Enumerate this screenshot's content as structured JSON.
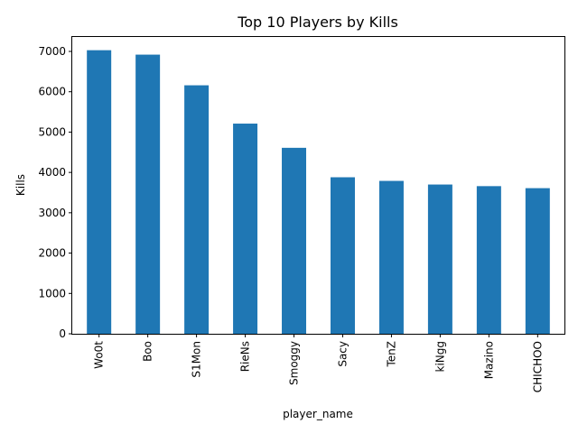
{
  "chart_data": {
    "type": "bar",
    "title": "Top 10 Players by Kills",
    "xlabel": "player_name",
    "ylabel": "Kills",
    "categories": [
      "Wo0t",
      "Boo",
      "S1Mon",
      "RieNs",
      "Smoggy",
      "Sacy",
      "TenZ",
      "kiNgg",
      "Mazino",
      "CHICHOO"
    ],
    "values": [
      7030,
      6920,
      6160,
      5210,
      4610,
      3880,
      3790,
      3700,
      3660,
      3610
    ],
    "ylim": [
      0,
      7380
    ],
    "yticks": [
      0,
      1000,
      2000,
      3000,
      4000,
      5000,
      6000,
      7000
    ],
    "grid": false,
    "bar_color": "#1f77b4",
    "tick_label_rotation": "vertical"
  }
}
